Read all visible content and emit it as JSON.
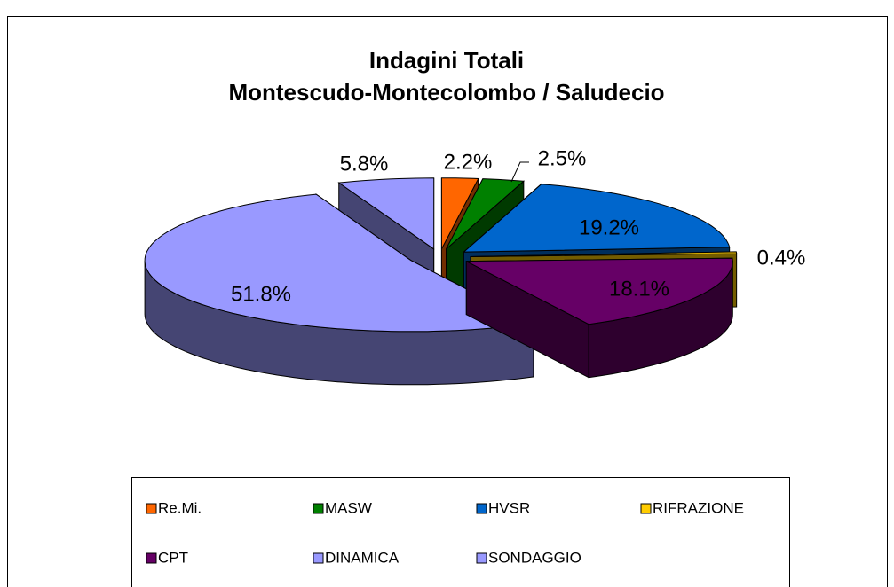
{
  "chart_data": {
    "type": "pie3d",
    "title": [
      "Indagini Totali",
      "Montescudo-Montecolombo / Saludecio"
    ],
    "categories": [
      "Re.Mi.",
      "MASW",
      "HVSR",
      "RIFRAZIONE",
      "CPT",
      "DINAMICA",
      "SONDAGGIO"
    ],
    "values": [
      2.2,
      2.5,
      19.2,
      0.4,
      18.1,
      51.8,
      5.8
    ],
    "value_labels": [
      "2.2%",
      "2.5%",
      "19.2%",
      "0.4%",
      "18.1%",
      "51.8%",
      "5.8%"
    ],
    "colors": [
      "#ff6600",
      "#008000",
      "#0066cc",
      "#ffcc00",
      "#660066",
      "#9999ff",
      "#9999ff"
    ],
    "legend": "bottom"
  }
}
